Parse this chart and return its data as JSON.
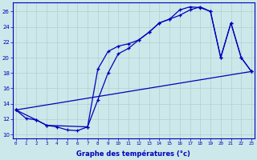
{
  "xlabel": "Graphe des températures (°c)",
  "background_color": "#cce8ea",
  "line_color": "#0000bb",
  "xlim": [
    -0.3,
    23.3
  ],
  "ylim": [
    9.5,
    27.2
  ],
  "xticks": [
    0,
    1,
    2,
    3,
    4,
    5,
    6,
    7,
    8,
    9,
    10,
    11,
    12,
    13,
    14,
    15,
    16,
    17,
    18,
    19,
    20,
    21,
    22,
    23
  ],
  "yticks": [
    10,
    12,
    14,
    16,
    18,
    20,
    22,
    24,
    26
  ],
  "line1_x": [
    0,
    1,
    2,
    3,
    4,
    5,
    6,
    7,
    8,
    9,
    10,
    11,
    12,
    13,
    14,
    15,
    16,
    17,
    18,
    19,
    20,
    21,
    22,
    23
  ],
  "line1_y": [
    13.2,
    12.1,
    11.9,
    11.2,
    11.0,
    10.6,
    10.5,
    11.0,
    14.5,
    18.0,
    20.5,
    21.2,
    22.3,
    23.3,
    24.5,
    25.0,
    26.2,
    26.6,
    26.5,
    26.0,
    20.0,
    24.5,
    20.0,
    18.2
  ],
  "line2_x": [
    0,
    2,
    3,
    7,
    8,
    9,
    10,
    11,
    12,
    13,
    14,
    15,
    16,
    17,
    18,
    19,
    20,
    21,
    22,
    23
  ],
  "line2_y": [
    13.2,
    11.9,
    11.2,
    11.0,
    18.5,
    20.8,
    21.5,
    21.8,
    22.3,
    23.3,
    24.5,
    25.0,
    25.5,
    26.2,
    26.6,
    26.0,
    20.0,
    24.5,
    20.0,
    18.2
  ],
  "line3_x": [
    0,
    23
  ],
  "line3_y": [
    13.2,
    18.2
  ],
  "grid_color": "#b0d0d0"
}
